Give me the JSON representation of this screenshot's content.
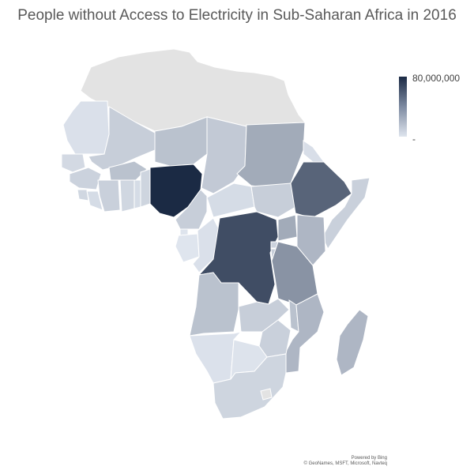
{
  "title": "People without Access to Electricity in Sub-Saharan Africa in 2016",
  "legend": {
    "max_label": "80,000,000",
    "min_label": "-",
    "color_high": "#1b2a44",
    "color_low": "#dfe5ee"
  },
  "no_data_color": "#e3e3e3",
  "attribution": {
    "line1": "Powered by Bing",
    "line2": "© GeoNames, MSFT, Microsoft, Navteq"
  },
  "chart_data": {
    "type": "choropleth",
    "scale": {
      "min": 0,
      "max": 80000000
    },
    "regions": [
      {
        "region": "Nigeria",
        "value": 80000000
      },
      {
        "region": "Democratic Republic of the Congo",
        "value": 65000000
      },
      {
        "region": "Ethiopia",
        "value": 55000000
      },
      {
        "region": "Tanzania",
        "value": 35000000
      },
      {
        "region": "Sudan",
        "value": 25000000
      },
      {
        "region": "Uganda",
        "value": 25000000
      },
      {
        "region": "Kenya",
        "value": 20000000
      },
      {
        "region": "Mozambique",
        "value": 20000000
      },
      {
        "region": "Madagascar",
        "value": 20000000
      },
      {
        "region": "Angola",
        "value": 15000000
      },
      {
        "region": "Niger",
        "value": 15000000
      },
      {
        "region": "Malawi",
        "value": 15000000
      },
      {
        "region": "Burkina Faso",
        "value": 15000000
      },
      {
        "region": "Mali",
        "value": 10000000
      },
      {
        "region": "South Sudan",
        "value": 10000000
      },
      {
        "region": "Chad",
        "value": 12000000
      },
      {
        "region": "Cameroon",
        "value": 10000000
      },
      {
        "region": "Zambia",
        "value": 10000000
      },
      {
        "region": "Somalia",
        "value": 9000000
      },
      {
        "region": "Côte d'Ivoire",
        "value": 9000000
      },
      {
        "region": "Zimbabwe",
        "value": 9000000
      },
      {
        "region": "Ghana",
        "value": 6000000
      },
      {
        "region": "Guinea",
        "value": 8000000
      },
      {
        "region": "South Africa",
        "value": 7000000
      },
      {
        "region": "Central African Republic",
        "value": 4000000
      },
      {
        "region": "Mauritania",
        "value": 2000000
      },
      {
        "region": "Namibia",
        "value": 1500000
      },
      {
        "region": "Botswana",
        "value": 800000
      },
      {
        "region": "Gabon",
        "value": 200000
      },
      {
        "region": "Republic of the Congo",
        "value": 2000000
      },
      {
        "region": "Senegal",
        "value": 5000000
      },
      {
        "region": "Sierra Leone",
        "value": 6000000
      },
      {
        "region": "Liberia",
        "value": 4000000
      },
      {
        "region": "Benin",
        "value": 7000000
      },
      {
        "region": "Togo",
        "value": 4000000
      },
      {
        "region": "Eritrea",
        "value": 3000000
      },
      {
        "region": "Equatorial Guinea",
        "value": 400000
      },
      {
        "region": "Rwanda",
        "value": 8000000
      },
      {
        "region": "Burundi",
        "value": 10000000
      }
    ]
  }
}
